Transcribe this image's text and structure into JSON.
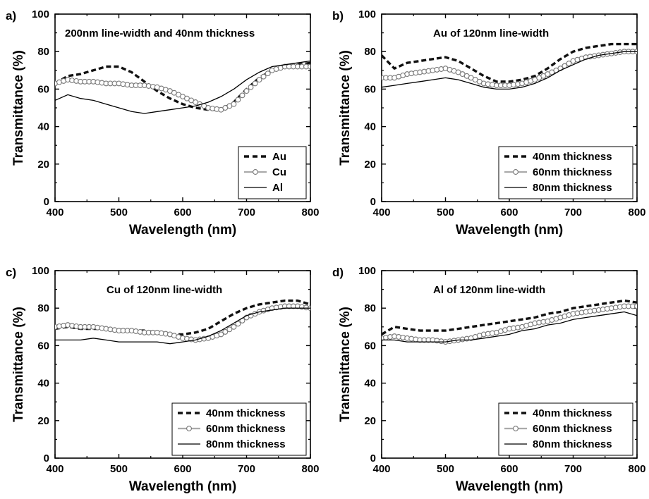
{
  "chart_data": [
    {
      "panel": "a)",
      "type": "line",
      "annotation": "200nm line-width and 40nm thickness",
      "xlabel": "Wavelength (nm)",
      "ylabel": "Transmittance (%)",
      "xlim": [
        400,
        800
      ],
      "ylim": [
        0,
        100
      ],
      "xticks": [
        "400",
        "500",
        "600",
        "700",
        "800"
      ],
      "yticks": [
        "0",
        "20",
        "40",
        "60",
        "80",
        "100"
      ],
      "legend_position": "bottom-right",
      "series": [
        {
          "name": "Au",
          "style": "dashed",
          "x": [
            400,
            420,
            440,
            460,
            480,
            500,
            520,
            540,
            560,
            580,
            600,
            620,
            640,
            660,
            680,
            700,
            720,
            740,
            760,
            780,
            800
          ],
          "y": [
            63,
            67,
            68,
            70,
            72,
            72,
            69,
            64,
            59,
            55,
            52,
            50,
            49,
            49,
            53,
            60,
            66,
            70,
            72,
            73,
            74
          ]
        },
        {
          "name": "Cu",
          "style": "open-circle",
          "x": [
            400,
            420,
            440,
            460,
            480,
            500,
            520,
            540,
            560,
            580,
            600,
            620,
            640,
            660,
            680,
            700,
            720,
            740,
            760,
            780,
            800
          ],
          "y": [
            63,
            65,
            64,
            64,
            63,
            63,
            62,
            62,
            61,
            59,
            56,
            53,
            50,
            49,
            52,
            59,
            65,
            70,
            72,
            72,
            72
          ]
        },
        {
          "name": "Al",
          "style": "solid",
          "x": [
            400,
            420,
            440,
            460,
            480,
            500,
            520,
            540,
            560,
            580,
            600,
            620,
            640,
            660,
            680,
            700,
            720,
            740,
            760,
            780,
            800
          ],
          "y": [
            54,
            57,
            55,
            54,
            52,
            50,
            48,
            47,
            48,
            49,
            50,
            51,
            53,
            56,
            60,
            65,
            69,
            72,
            73,
            74,
            75
          ]
        }
      ]
    },
    {
      "panel": "b)",
      "type": "line",
      "annotation": "Au of 120nm line-width",
      "xlabel": "Wavelength (nm)",
      "ylabel": "Transmittance (%)",
      "xlim": [
        400,
        800
      ],
      "ylim": [
        0,
        100
      ],
      "xticks": [
        "400",
        "500",
        "600",
        "700",
        "800"
      ],
      "yticks": [
        "0",
        "20",
        "40",
        "60",
        "80",
        "100"
      ],
      "legend_position": "bottom-right",
      "series": [
        {
          "name": "40nm thickness",
          "style": "dashed",
          "x": [
            400,
            420,
            440,
            460,
            480,
            500,
            520,
            540,
            560,
            580,
            600,
            620,
            640,
            660,
            680,
            700,
            720,
            740,
            760,
            780,
            800
          ],
          "y": [
            78,
            71,
            74,
            75,
            76,
            77,
            75,
            71,
            67,
            64,
            64,
            65,
            67,
            71,
            76,
            80,
            82,
            83,
            84,
            84,
            84
          ]
        },
        {
          "name": "60nm thickness",
          "style": "open-circle",
          "x": [
            400,
            420,
            440,
            460,
            480,
            500,
            520,
            540,
            560,
            580,
            600,
            620,
            640,
            660,
            680,
            700,
            720,
            740,
            760,
            780,
            800
          ],
          "y": [
            66,
            66,
            68,
            69,
            70,
            71,
            69,
            66,
            63,
            62,
            62,
            63,
            65,
            68,
            71,
            75,
            77,
            78,
            79,
            80,
            80
          ]
        },
        {
          "name": "80nm thickness",
          "style": "solid",
          "x": [
            400,
            420,
            440,
            460,
            480,
            500,
            520,
            540,
            560,
            580,
            600,
            620,
            640,
            660,
            680,
            700,
            720,
            740,
            760,
            780,
            800
          ],
          "y": [
            61,
            62,
            63,
            64,
            65,
            66,
            65,
            63,
            61,
            60,
            60,
            61,
            63,
            66,
            70,
            73,
            76,
            78,
            79,
            80,
            80
          ]
        }
      ]
    },
    {
      "panel": "c)",
      "type": "line",
      "annotation": "Cu of 120nm line-width",
      "xlabel": "Wavelength (nm)",
      "ylabel": "Transmittance (%)",
      "xlim": [
        400,
        800
      ],
      "ylim": [
        0,
        100
      ],
      "xticks": [
        "400",
        "500",
        "600",
        "700",
        "800"
      ],
      "yticks": [
        "0",
        "20",
        "40",
        "60",
        "80",
        "100"
      ],
      "legend_position": "bottom-right",
      "series": [
        {
          "name": "40nm thickness",
          "style": "dashed",
          "x": [
            400,
            420,
            440,
            460,
            480,
            500,
            520,
            540,
            560,
            580,
            600,
            620,
            640,
            660,
            680,
            700,
            720,
            740,
            760,
            780,
            800
          ],
          "y": [
            69,
            70,
            69,
            69,
            69,
            68,
            68,
            68,
            67,
            66,
            66,
            67,
            69,
            73,
            77,
            80,
            82,
            83,
            84,
            84,
            82
          ]
        },
        {
          "name": "60nm thickness",
          "style": "open-circle",
          "x": [
            400,
            420,
            440,
            460,
            480,
            500,
            520,
            540,
            560,
            580,
            600,
            620,
            640,
            660,
            680,
            700,
            720,
            740,
            760,
            780,
            800
          ],
          "y": [
            70,
            71,
            70,
            70,
            69,
            68,
            68,
            67,
            67,
            66,
            64,
            63,
            64,
            66,
            70,
            75,
            78,
            80,
            81,
            81,
            80
          ]
        },
        {
          "name": "80nm thickness",
          "style": "solid",
          "x": [
            400,
            420,
            440,
            460,
            480,
            500,
            520,
            540,
            560,
            580,
            600,
            620,
            640,
            660,
            680,
            700,
            720,
            740,
            760,
            780,
            800
          ],
          "y": [
            63,
            63,
            63,
            64,
            63,
            62,
            62,
            62,
            62,
            61,
            62,
            63,
            65,
            68,
            72,
            76,
            78,
            79,
            80,
            80,
            80
          ]
        }
      ]
    },
    {
      "panel": "d)",
      "type": "line",
      "annotation": "Al of 120nm line-width",
      "xlabel": "Wavelength (nm)",
      "ylabel": "Transmittance (%)",
      "xlim": [
        400,
        800
      ],
      "ylim": [
        0,
        100
      ],
      "xticks": [
        "400",
        "500",
        "600",
        "700",
        "800"
      ],
      "yticks": [
        "0",
        "20",
        "40",
        "60",
        "80",
        "100"
      ],
      "legend_position": "bottom-right",
      "series": [
        {
          "name": "40nm thickness",
          "style": "dashed",
          "x": [
            400,
            420,
            440,
            460,
            480,
            500,
            520,
            540,
            560,
            580,
            600,
            620,
            640,
            660,
            680,
            700,
            720,
            740,
            760,
            780,
            800
          ],
          "y": [
            66,
            70,
            69,
            68,
            68,
            68,
            69,
            70,
            71,
            72,
            73,
            74,
            75,
            77,
            78,
            80,
            81,
            82,
            83,
            84,
            83
          ]
        },
        {
          "name": "60nm thickness",
          "style": "open-circle",
          "x": [
            400,
            420,
            440,
            460,
            480,
            500,
            520,
            540,
            560,
            580,
            600,
            620,
            640,
            660,
            680,
            700,
            720,
            740,
            760,
            780,
            800
          ],
          "y": [
            64,
            65,
            64,
            63,
            63,
            62,
            63,
            64,
            66,
            67,
            69,
            70,
            72,
            73,
            75,
            77,
            78,
            79,
            80,
            81,
            81
          ]
        },
        {
          "name": "80nm thickness",
          "style": "solid",
          "x": [
            400,
            420,
            440,
            460,
            480,
            500,
            520,
            540,
            560,
            580,
            600,
            620,
            640,
            660,
            680,
            700,
            720,
            740,
            760,
            780,
            800
          ],
          "y": [
            63,
            63,
            62,
            62,
            62,
            62,
            63,
            63,
            64,
            65,
            66,
            68,
            69,
            71,
            72,
            74,
            75,
            76,
            77,
            78,
            76
          ]
        }
      ]
    }
  ]
}
